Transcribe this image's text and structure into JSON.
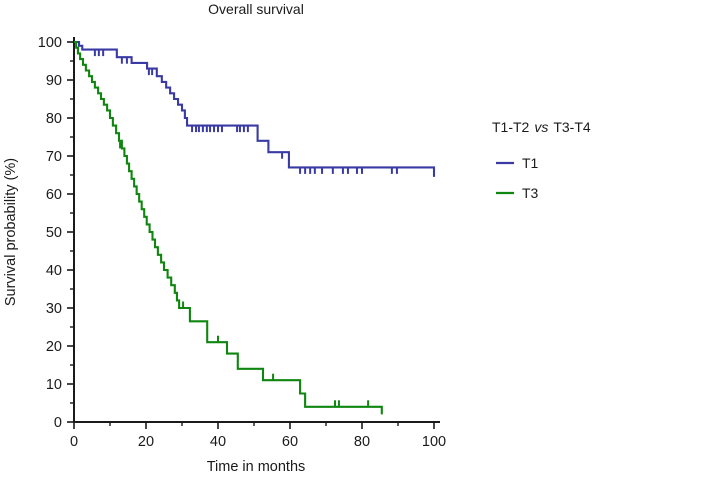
{
  "title": "Overall survival",
  "axes": {
    "x": {
      "label": "Time in months",
      "min": 0,
      "max": 100,
      "major_ticks": [
        0,
        20,
        40,
        60,
        80,
        100
      ],
      "minor_ticks": [
        10,
        30,
        50,
        70,
        90
      ]
    },
    "y": {
      "label": "Survival probability (%)",
      "min": 0,
      "max": 100,
      "major_ticks": [
        0,
        10,
        20,
        30,
        40,
        50,
        60,
        70,
        80,
        90,
        100
      ],
      "minor_ticks": [
        5,
        15,
        25,
        35,
        45,
        55,
        65,
        75,
        85,
        95
      ]
    }
  },
  "legend": {
    "title_pre": "T1-T2",
    "title_vs": "vs",
    "title_post": "T3-T4",
    "items": [
      {
        "label": "T1",
        "color": "#3a3aa4"
      },
      {
        "label": "T3",
        "color": "#0f860f"
      }
    ]
  },
  "colors": {
    "axis": "#1a1a1a",
    "t1_blue": "#3a3aa4",
    "t3_green": "#0f860f"
  },
  "chart_data": {
    "type": "line",
    "subtype": "kaplan-meier-step",
    "title": "Overall survival",
    "xlabel": "Time in months",
    "ylabel": "Survival probability (%)",
    "xlim": [
      0,
      100
    ],
    "ylim": [
      0,
      100
    ],
    "grid": false,
    "legend_position": "right",
    "series": [
      {
        "name": "T1",
        "color": "#3a3aa4",
        "censor_dir": "down",
        "steps": [
          [
            0,
            100
          ],
          [
            1.4,
            99
          ],
          [
            2.3,
            98
          ],
          [
            11.9,
            96
          ],
          [
            16,
            94.5
          ],
          [
            20.3,
            93
          ],
          [
            23,
            91
          ],
          [
            24.4,
            89.5
          ],
          [
            25.6,
            88
          ],
          [
            26.7,
            86.5
          ],
          [
            27.8,
            85
          ],
          [
            28.9,
            83.5
          ],
          [
            30,
            82
          ],
          [
            30.8,
            80
          ],
          [
            31.4,
            78
          ],
          [
            51,
            74
          ],
          [
            54,
            71
          ],
          [
            59.7,
            67
          ],
          [
            100,
            64.5
          ]
        ],
        "censors": [
          [
            5.8,
            98
          ],
          [
            6.9,
            98
          ],
          [
            8.1,
            98
          ],
          [
            13.3,
            96
          ],
          [
            14.7,
            96
          ],
          [
            20.8,
            93
          ],
          [
            21.7,
            93
          ],
          [
            32.8,
            78
          ],
          [
            33.9,
            78
          ],
          [
            34.7,
            78
          ],
          [
            35.8,
            78
          ],
          [
            36.9,
            78
          ],
          [
            37.8,
            78
          ],
          [
            38.9,
            78
          ],
          [
            40,
            78
          ],
          [
            41.1,
            78
          ],
          [
            45.3,
            78
          ],
          [
            46.1,
            78
          ],
          [
            47.2,
            78
          ],
          [
            48.3,
            78
          ],
          [
            57.8,
            71
          ],
          [
            62.8,
            67
          ],
          [
            64.2,
            67
          ],
          [
            65.6,
            67
          ],
          [
            66.9,
            67
          ],
          [
            68.9,
            67
          ],
          [
            71.9,
            67
          ],
          [
            74.7,
            67
          ],
          [
            76.1,
            67
          ],
          [
            78.6,
            67
          ],
          [
            80,
            67
          ],
          [
            88.3,
            67
          ],
          [
            89.7,
            67
          ]
        ]
      },
      {
        "name": "T3",
        "color": "#0f860f",
        "censor_dir": "up",
        "steps": [
          [
            0,
            100
          ],
          [
            0.6,
            98.5
          ],
          [
            1.1,
            97
          ],
          [
            1.7,
            95.5
          ],
          [
            2.5,
            94
          ],
          [
            3.3,
            92.5
          ],
          [
            4.2,
            91
          ],
          [
            5,
            89.5
          ],
          [
            5.8,
            88
          ],
          [
            6.7,
            86.5
          ],
          [
            7.5,
            85
          ],
          [
            8.3,
            83.5
          ],
          [
            9.2,
            82
          ],
          [
            10,
            80
          ],
          [
            10.8,
            78
          ],
          [
            11.7,
            76
          ],
          [
            12.5,
            74
          ],
          [
            13.3,
            72
          ],
          [
            14,
            70
          ],
          [
            14.7,
            68
          ],
          [
            15.3,
            66
          ],
          [
            16,
            64
          ],
          [
            16.7,
            62
          ],
          [
            17.4,
            60
          ],
          [
            18.1,
            58
          ],
          [
            18.8,
            56
          ],
          [
            19.5,
            54
          ],
          [
            20.2,
            52
          ],
          [
            21,
            50
          ],
          [
            21.8,
            48
          ],
          [
            22.5,
            46
          ],
          [
            23.3,
            44
          ],
          [
            24.2,
            42
          ],
          [
            25,
            40
          ],
          [
            26,
            38
          ],
          [
            27,
            36
          ],
          [
            28,
            34
          ],
          [
            28.6,
            32
          ],
          [
            29.2,
            30
          ],
          [
            32.2,
            26.5
          ],
          [
            37,
            21
          ],
          [
            42.5,
            18
          ],
          [
            45.5,
            14
          ],
          [
            52.5,
            11
          ],
          [
            62.8,
            7.5
          ],
          [
            64.2,
            4
          ],
          [
            85.5,
            2
          ]
        ],
        "censors": [
          [
            12.8,
            72
          ],
          [
            30.3,
            30
          ],
          [
            40,
            21
          ],
          [
            55.3,
            11
          ],
          [
            72.5,
            4
          ],
          [
            73.6,
            4
          ],
          [
            81.7,
            4
          ]
        ]
      }
    ]
  }
}
